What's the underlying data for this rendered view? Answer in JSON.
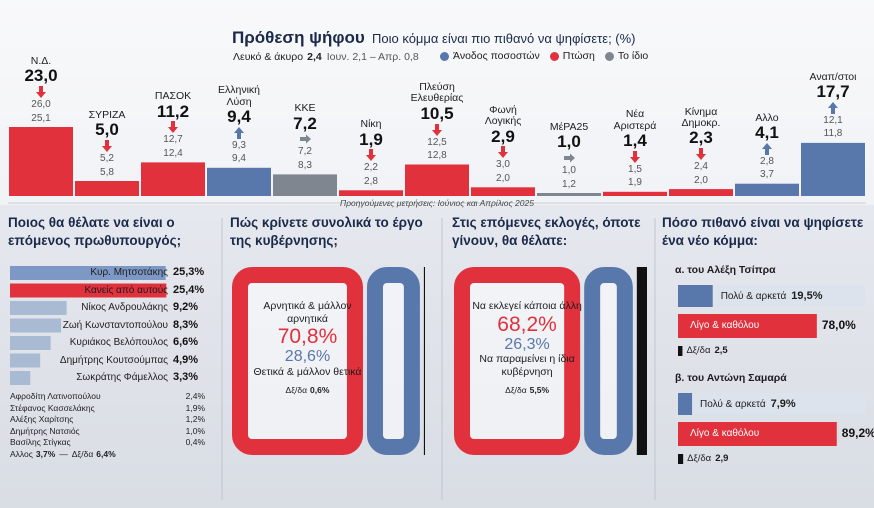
{
  "chart_data": [
    {
      "type": "bar",
      "title": "Πρόθεση ψήφου",
      "subtitle": "Ποιο κόμμα είναι πιο πιθανό να ψηφίσετε; (%)",
      "note": {
        "label": "Λευκό & άκυρο",
        "value": "2,4",
        "previous": "Ιουν. 2,1 – Απρ. 0,8"
      },
      "legend": [
        {
          "label": "Άνοδος ποσοστών",
          "color": "#5877ab"
        },
        {
          "label": "Πτώση",
          "color": "#e0313d"
        },
        {
          "label": "Το ίδιο",
          "color": "#80868f"
        }
      ],
      "categories": [
        "Ν.Δ.",
        "ΣΥΡΙΖΑ",
        "ΠΑΣΟΚ",
        "Ελληνική Λύση",
        "ΚΚΕ",
        "Νίκη",
        "Πλεύση Ελευθερίας",
        "Φωνή Λογικής",
        "ΜέΡΑ25",
        "Νέα Αριστερά",
        "Κίνημα Δημοκρ.",
        "Αλλο",
        "Αναπ/στοι"
      ],
      "values": [
        23.0,
        5.0,
        11.2,
        9.4,
        7.2,
        1.9,
        10.5,
        2.9,
        1.0,
        1.4,
        2.3,
        4.1,
        17.7
      ],
      "value_labels": [
        "23,0",
        "5,0",
        "11,2",
        "9,4",
        "7,2",
        "1,9",
        "10,5",
        "2,9",
        "1,0",
        "1,4",
        "2,3",
        "4,1",
        "17,7"
      ],
      "colors": [
        "#e0313d",
        "#e0313d",
        "#e0313d",
        "#5877ab",
        "#80868f",
        "#e0313d",
        "#e0313d",
        "#e0313d",
        "#80868f",
        "#e0313d",
        "#e0313d",
        "#5877ab",
        "#5877ab"
      ],
      "june_labels": [
        "26,0",
        "5,2",
        "12,7",
        "9,3",
        "7,2",
        "2,2",
        "12,5",
        "3,0",
        "1,0",
        "1,5",
        "2,4",
        "2,8",
        "12,1"
      ],
      "april_labels": [
        "25,1",
        "5,8",
        "12,4",
        "9,4",
        "8,3",
        "2,8",
        "12,8",
        "2,0",
        "1,2",
        "1,9",
        "2,0",
        "3,7",
        "11,8"
      ],
      "ylim": [
        0,
        25
      ],
      "footnote": "Προηγούμενες μετρήσεις: Ιούνιος και Απρίλιος 2025"
    },
    {
      "type": "hbar",
      "title": "Ποιος θα θέλατε να είναι ο επόμενος πρωθυπουργός;",
      "categories": [
        "Κυρ. Μητσοτάκης",
        "Κανείς από αυτούς",
        "Νίκος Ανδρουλάκης",
        "Ζωή Κωνσταντοπούλου",
        "Κυριάκος Βελόπουλος",
        "Δημήτρης Κουτσούμπας",
        "Σωκράτης Φάμελλος"
      ],
      "values": [
        25.3,
        25.4,
        9.2,
        8.3,
        6.6,
        4.9,
        3.3
      ],
      "value_labels": [
        "25,3%",
        "25,4%",
        "9,2%",
        "8,3%",
        "6,6%",
        "4,9%",
        "3,3%"
      ],
      "colors": [
        "#7d98c4",
        "#e0313d",
        "#a9bbd3",
        "#a9bbd3",
        "#a9bbd3",
        "#a9bbd3",
        "#a9bbd3"
      ],
      "xlim": [
        0,
        26
      ],
      "others": {
        "categories": [
          "Αφροδίτη Λατινοπούλου",
          "Στέφανος Κασσελάκης",
          "Αλέξης Χαρίτσης",
          "Δημήτρης Νατσιός",
          "Βασίλης Στίγκας"
        ],
        "value_labels": [
          "2,4%",
          "1,9%",
          "1,2%",
          "1,0%",
          "0,4%"
        ]
      },
      "rest": [
        {
          "label": "Αλλος",
          "value_label": "3,7%"
        },
        {
          "label": "Δξ/δα",
          "value_label": "6,4%"
        }
      ],
      "separator": "—"
    },
    {
      "type": "gauge",
      "title": "Πώς κρίνετε συνολικά το έργο της κυβέρνησης;",
      "items": [
        {
          "label": "Αρνητικά & μάλλον αρνητικά",
          "value": 70.8,
          "value_label": "70,8%",
          "color": "#e0313d"
        },
        {
          "label": "Θετικά & μάλλον θετικά",
          "value": 28.6,
          "value_label": "28,6%",
          "color": "#5877ab"
        },
        {
          "label": "Δξ/δα",
          "value": 0.6,
          "value_label": "0,6%",
          "color": "#111111"
        }
      ]
    },
    {
      "type": "gauge",
      "title": "Στις επόμενες εκλογές, όποτε γίνουν, θα θέλατε:",
      "items": [
        {
          "label": "Να εκλεγεί κάποια άλλη",
          "value": 68.2,
          "value_label": "68,2%",
          "color": "#e0313d"
        },
        {
          "label": "Να παραμείνει η ίδια κυβέρνηση",
          "value": 26.3,
          "value_label": "26,3%",
          "color": "#5877ab"
        },
        {
          "label": "Δξ/δα",
          "value": 5.5,
          "value_label": "5,5%",
          "color": "#111111"
        }
      ]
    },
    {
      "type": "grouped-hbar",
      "title": "Πόσο πιθανό είναι να ψηφίσετε ένα νέο κόμμα:",
      "xlim": [
        0,
        100
      ],
      "colors": [
        "#5877ab",
        "#e0313d",
        "#111111"
      ],
      "groups": [
        {
          "name": "α. του Αλέξη Τσίπρα",
          "categories": [
            "Πολύ & αρκετά",
            "Λίγο & καθόλου",
            "Δξ/δα"
          ],
          "values": [
            19.5,
            78.0,
            2.5
          ],
          "value_labels": [
            "19,5%",
            "78,0%",
            "2,5"
          ]
        },
        {
          "name": "β. του Αντώνη Σαμαρά",
          "categories": [
            "Πολύ & αρκετά",
            "Λίγο & καθόλου",
            "Δξ/δα"
          ],
          "values": [
            7.9,
            89.2,
            2.9
          ],
          "value_labels": [
            "7,9%",
            "89,2%",
            "2,9"
          ]
        }
      ]
    }
  ]
}
